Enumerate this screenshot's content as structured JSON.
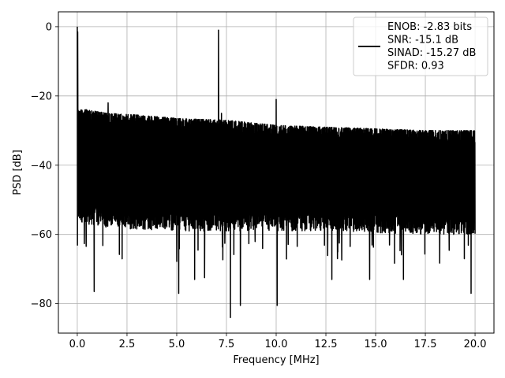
{
  "chart_data": {
    "type": "line",
    "xlabel": "Frequency [MHz]",
    "ylabel": "PSD [dB]",
    "xlim": [
      -0.95,
      20.95
    ],
    "ylim": [
      -88.5,
      4.3
    ],
    "xticks": [
      0.0,
      2.5,
      5.0,
      7.5,
      10.0,
      12.5,
      15.0,
      17.5,
      20.0
    ],
    "xtick_labels": [
      "0.0",
      "2.5",
      "5.0",
      "7.5",
      "10.0",
      "12.5",
      "15.0",
      "17.5",
      "20.0"
    ],
    "yticks": [
      0,
      -20,
      -40,
      -60,
      -80
    ],
    "ytick_labels": [
      "0",
      "−20",
      "−40",
      "−60",
      "−80"
    ],
    "grid": true,
    "legend_position": "top-right",
    "series_color": "#000000",
    "legend": {
      "lines": [
        "ENOB: -2.83 bits",
        "SNR: -15.1 dB",
        "SINAD: -15.27 dB",
        "SFDR: 0.93"
      ]
    },
    "noise_envelope": {
      "x": [
        0,
        0.5,
        1.5,
        3,
        5,
        7.5,
        10,
        12.5,
        15,
        17.5,
        20
      ],
      "upper": [
        -24,
        -24,
        -25,
        -25.5,
        -26.5,
        -27,
        -28.5,
        -29,
        -29.5,
        -30,
        -30
      ],
      "lower": [
        -59,
        -60,
        -61,
        -61.5,
        -62,
        -62,
        -62,
        -62,
        -62.5,
        -63,
        -63
      ]
    },
    "peaks": [
      {
        "x": 0.0,
        "y": 0.0
      },
      {
        "x": 0.02,
        "y": -1.5
      },
      {
        "x": 7.1,
        "y": -1.0
      },
      {
        "x": 10.0,
        "y": -21.0
      },
      {
        "x": 1.55,
        "y": -22.0
      },
      {
        "x": 7.25,
        "y": -25.0
      }
    ],
    "dips": [
      {
        "x": 0.85,
        "y": -76.5
      },
      {
        "x": 5.1,
        "y": -77.0
      },
      {
        "x": 5.9,
        "y": -73.0
      },
      {
        "x": 6.4,
        "y": -72.5
      },
      {
        "x": 7.7,
        "y": -84.0
      },
      {
        "x": 8.2,
        "y": -80.5
      },
      {
        "x": 10.05,
        "y": -80.5
      },
      {
        "x": 12.8,
        "y": -73.0
      },
      {
        "x": 14.7,
        "y": -73.0
      },
      {
        "x": 16.4,
        "y": -73.0
      },
      {
        "x": 19.8,
        "y": -77.0
      }
    ]
  }
}
